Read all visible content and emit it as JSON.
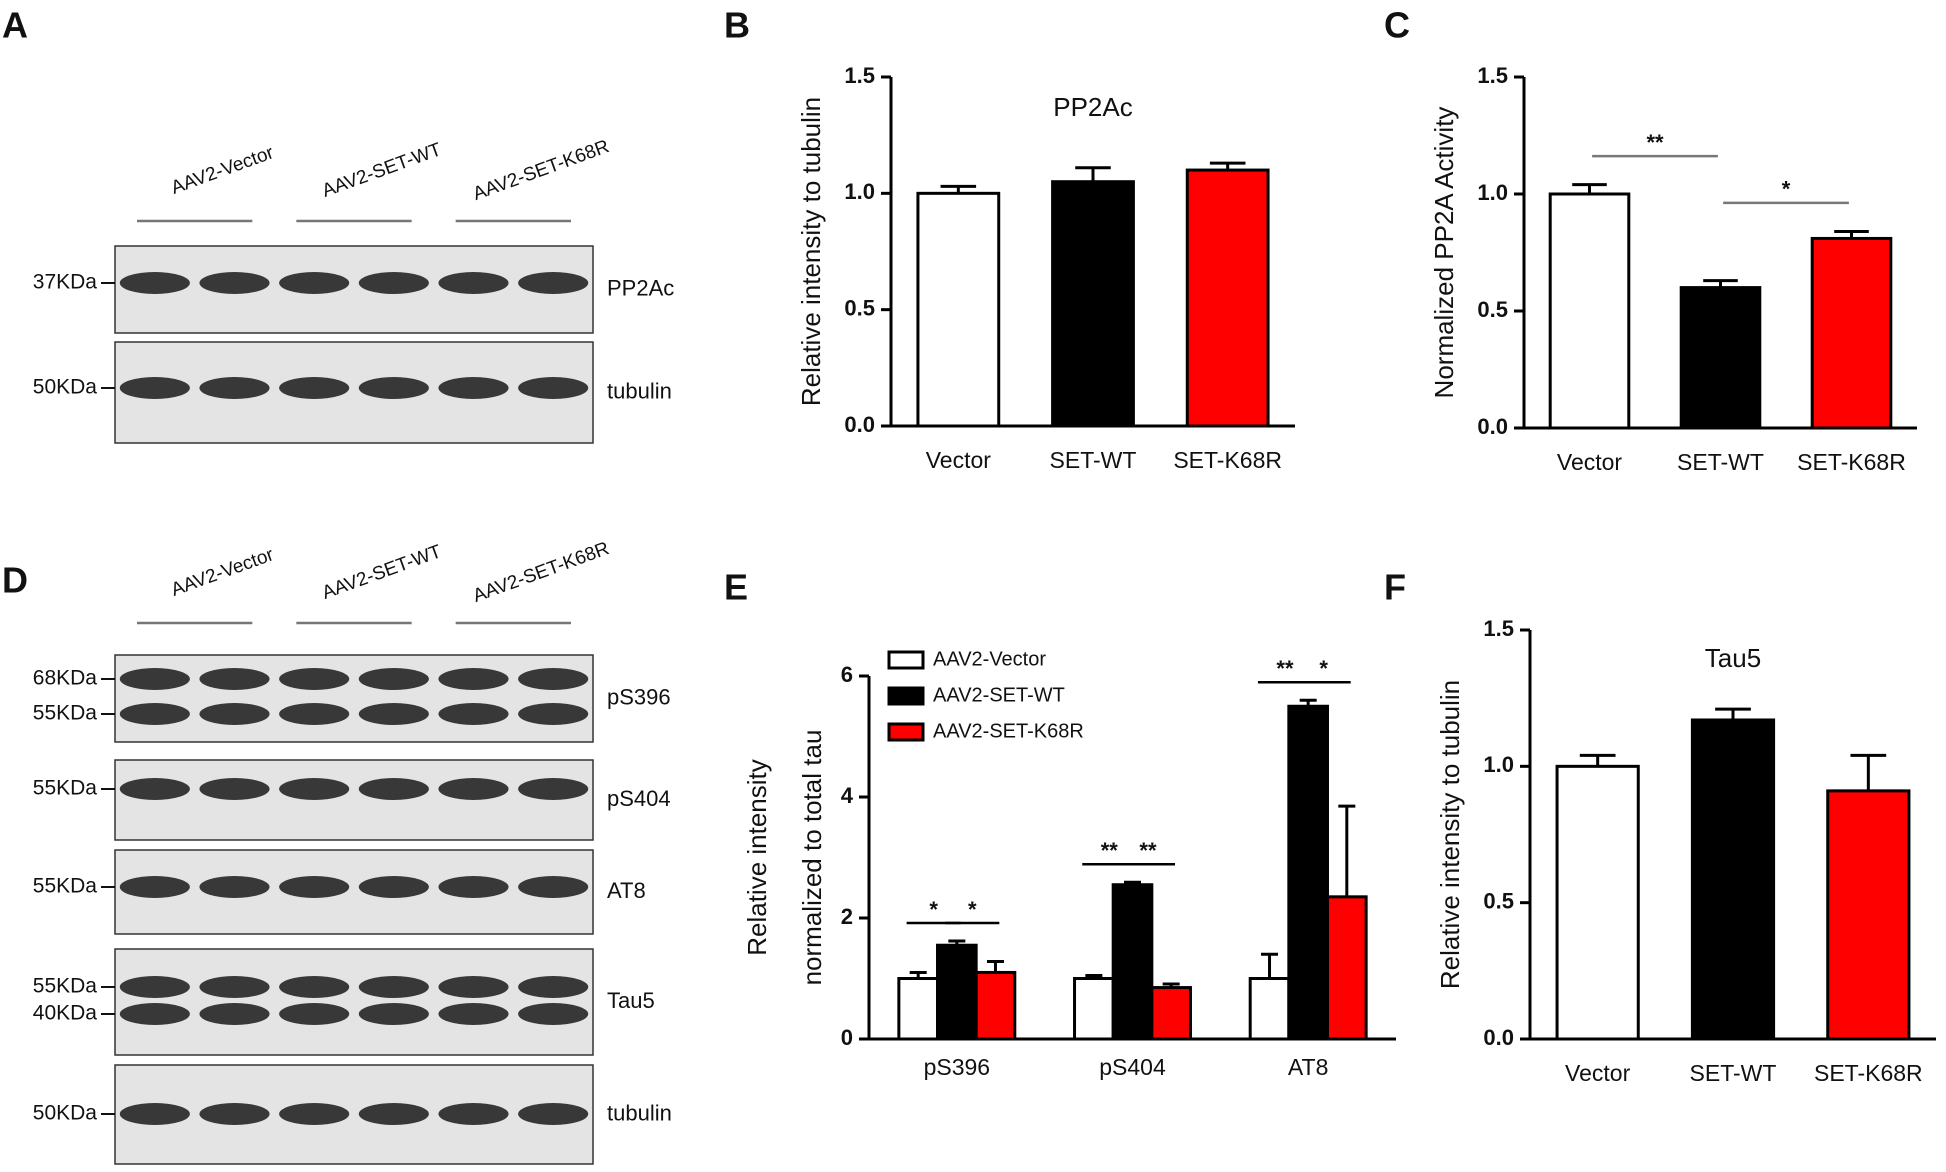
{
  "blots": [
    {
      "panel": "A",
      "groups": [
        "AAV2-Vector",
        "AAV2-SET-WT",
        "AAV2-SET-K68R"
      ],
      "rows": [
        {
          "label": "PP2Ac",
          "markers": [
            "37KDa"
          ]
        },
        {
          "label": "tubulin",
          "markers": [
            "50KDa"
          ]
        }
      ]
    },
    {
      "panel": "D",
      "groups": [
        "AAV2-Vector",
        "AAV2-SET-WT",
        "AAV2-SET-K68R"
      ],
      "rows": [
        {
          "label": "pS396",
          "markers": [
            "68KDa",
            "55KDa"
          ]
        },
        {
          "label": "pS404",
          "markers": [
            "55KDa"
          ]
        },
        {
          "label": "AT8",
          "markers": [
            "55KDa"
          ]
        },
        {
          "label": "Tau5",
          "markers": [
            "55KDa",
            "40KDa"
          ]
        },
        {
          "label": "tubulin",
          "markers": [
            "50KDa"
          ]
        }
      ]
    }
  ],
  "chart_data": [
    {
      "type": "bar",
      "panel": "B",
      "title": "PP2Ac",
      "y_label": "Relative intensity to tubulin",
      "categories": [
        "Vector",
        "SET-WT",
        "SET-K68R"
      ],
      "values": [
        1.0,
        1.05,
        1.1
      ],
      "errors": [
        0.03,
        0.06,
        0.03
      ],
      "colors": [
        "#ffffff",
        "#000000",
        "#ff0000"
      ],
      "ylim": [
        0,
        1.5
      ],
      "yticks": [
        {
          "value": 0,
          "label": "0.0"
        },
        {
          "value": 0.5,
          "label": "0.5"
        },
        {
          "value": 1,
          "label": "1.0"
        },
        {
          "value": 1.5,
          "label": "1.5"
        }
      ]
    },
    {
      "type": "bar",
      "panel": "C",
      "y_label": "Normalized PP2A Activity",
      "categories": [
        "Vector",
        "SET-WT",
        "SET-K68R"
      ],
      "values": [
        1.0,
        0.6,
        0.81
      ],
      "errors": [
        0.04,
        0.03,
        0.03
      ],
      "colors": [
        "#ffffff",
        "#000000",
        "#ff0000"
      ],
      "ylim": [
        0,
        1.5
      ],
      "yticks": [
        {
          "value": 0,
          "label": "0.0"
        },
        {
          "value": 0.5,
          "label": "0.5"
        },
        {
          "value": 1,
          "label": "1.0"
        },
        {
          "value": 1.5,
          "label": "1.5"
        }
      ],
      "annotations": [
        "**",
        "*"
      ]
    },
    {
      "type": "grouped_bar",
      "panel": "E",
      "y_label": [
        "Relative intensity",
        "normalized to total tau"
      ],
      "categories": [
        "pS396",
        "pS404",
        "AT8"
      ],
      "series": [
        {
          "name": "AAV2-Vector",
          "color": "#ffffff",
          "values": [
            1.0,
            1.0,
            1.0
          ],
          "errors": [
            0.1,
            0.05,
            0.4
          ]
        },
        {
          "name": "AAV2-SET-WT",
          "color": "#000000",
          "values": [
            1.55,
            2.55,
            5.5
          ],
          "errors": [
            0.07,
            0.04,
            0.1
          ]
        },
        {
          "name": "AAV2-SET-K68R",
          "color": "#ff0000",
          "values": [
            1.1,
            0.85,
            2.35
          ],
          "errors": [
            0.18,
            0.06,
            1.5
          ]
        }
      ],
      "ylim": [
        0,
        6
      ],
      "yticks": [
        0,
        2,
        4,
        6
      ],
      "legend": "upper left",
      "annotations": [
        [
          "*",
          "*"
        ],
        [
          "**",
          "**"
        ],
        [
          "**",
          "*"
        ]
      ]
    },
    {
      "type": "bar",
      "panel": "F",
      "title": "Tau5",
      "y_label": "Relative intensity to tubulin",
      "categories": [
        "Vector",
        "SET-WT",
        "SET-K68R"
      ],
      "values": [
        1.0,
        1.17,
        0.91
      ],
      "errors": [
        0.04,
        0.04,
        0.13
      ],
      "colors": [
        "#ffffff",
        "#000000",
        "#ff0000"
      ],
      "ylim": [
        0,
        1.5
      ],
      "yticks": [
        {
          "value": 0,
          "label": "0.0"
        },
        {
          "value": 0.5,
          "label": "0.5"
        },
        {
          "value": 1,
          "label": "1.0"
        },
        {
          "value": 1.5,
          "label": "1.5"
        }
      ]
    }
  ]
}
